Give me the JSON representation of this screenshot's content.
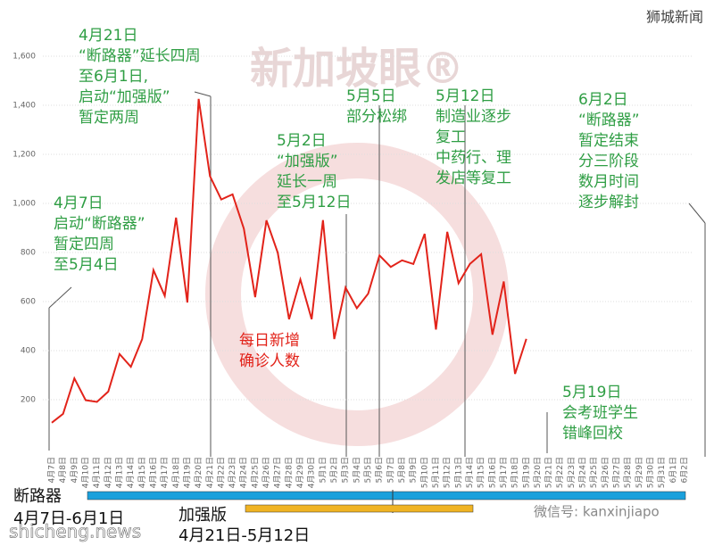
{
  "chart_data": {
    "type": "line",
    "categories": [
      "4月7日",
      "4月8日",
      "4月9日",
      "4月10日",
      "4月11日",
      "4月12日",
      "4月13日",
      "4月14日",
      "4月15日",
      "4月16日",
      "4月17日",
      "4月18日",
      "4月19日",
      "4月20日",
      "4月21日",
      "4月22日",
      "4月23日",
      "4月24日",
      "4月25日",
      "4月26日",
      "4月27日",
      "4月28日",
      "4月29日",
      "4月30日",
      "5月1日",
      "5月2日",
      "5月3日",
      "5月4日",
      "5月5日",
      "5月6日",
      "5月7日",
      "5月8日",
      "5月9日",
      "5月10日",
      "5月11日",
      "5月12日",
      "5月13日",
      "5月14日",
      "5月15日",
      "5月16日",
      "5月17日",
      "5月18日",
      "5月19日",
      "5月20日",
      "5月21日",
      "5月22日",
      "5月23日",
      "5月24日",
      "5月25日",
      "5月26日",
      "5月27日",
      "5月28日",
      "5月29日",
      "5月30日",
      "5月31日",
      "6月1日",
      "6月2日"
    ],
    "series": [
      {
        "color": "#e2231a",
        "values": [
          106,
          142,
          287,
          198,
          191,
          233,
          386,
          334,
          447,
          728,
          623,
          942,
          596,
          1426,
          1111,
          1016,
          1037,
          897,
          618,
          931,
          799,
          528,
          690,
          528,
          932,
          447,
          657,
          573,
          632,
          788,
          741,
          768,
          753,
          876,
          486,
          884,
          675,
          753,
          793,
          465,
          682,
          305,
          448,
          null,
          null,
          null,
          null,
          null,
          null,
          null,
          null,
          null,
          null,
          null,
          null,
          null,
          null
        ]
      }
    ],
    "ylim": [
      0,
      1600
    ],
    "yticks": [
      {
        "value": 200,
        "label": "200"
      },
      {
        "value": 400,
        "label": "400"
      },
      {
        "value": 600,
        "label": "600"
      },
      {
        "value": 800,
        "label": "800"
      },
      {
        "value": 1000,
        "label": "1,000"
      },
      {
        "value": 1200,
        "label": "1,200"
      },
      {
        "value": 1400,
        "label": "1,400"
      },
      {
        "value": 1600,
        "label": "1,600"
      }
    ],
    "grid": true,
    "annotations": [
      {
        "lines": [
          "4月21日",
          "“断路器”延长四周",
          "至6月1日,",
          "启动“加强版”",
          "暂定两周"
        ],
        "color": "#2f9e44"
      },
      {
        "lines": [
          "4月7日",
          "启动“断路器”",
          "暂定四周",
          "至5月4日"
        ],
        "color": "#2f9e44"
      },
      {
        "lines": [
          "5月2日",
          "“加强版”",
          "延长一周",
          "至5月12日"
        ],
        "color": "#2f9e44"
      },
      {
        "lines": [
          "5月5日",
          "部分松绑"
        ],
        "color": "#2f9e44"
      },
      {
        "lines": [
          "5月12日",
          "制造业逐步",
          "复工",
          "中药行、理",
          "发店等复工"
        ],
        "color": "#2f9e44"
      },
      {
        "lines": [
          "6月2日",
          "“断路器”",
          "暂定结束",
          "分三阶段",
          "数月时间",
          "逐步解封"
        ],
        "color": "#2f9e44"
      },
      {
        "lines": [
          "5月19日",
          "会考班学生",
          "错峰回校"
        ],
        "color": "#2f9e44"
      },
      {
        "lines": [
          "每日新增",
          "确诊人数"
        ],
        "color": "#e2231a"
      }
    ],
    "phases": [
      {
        "name": "断路器",
        "range": "4月7日-6月1日",
        "color": "#1aa0dc"
      },
      {
        "name": "加强版",
        "range": "4月21日-5月12日",
        "color": "#f0b323"
      }
    ],
    "watermark": "新加坡眼®",
    "source_top": "狮城新闻",
    "source_bottom": "shicheng.news",
    "wechat": "微信号: kanxinjiapo"
  }
}
